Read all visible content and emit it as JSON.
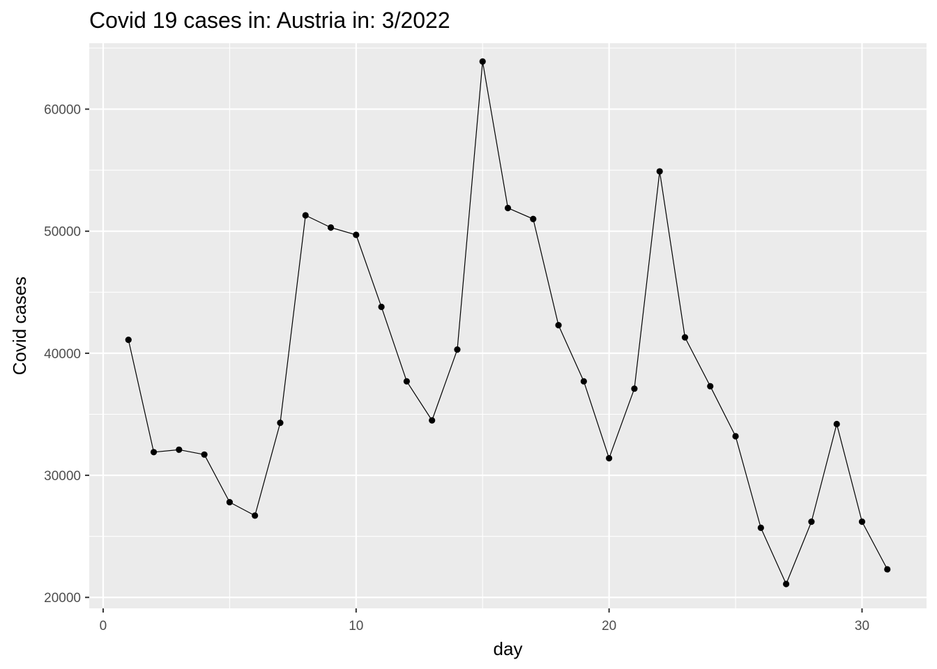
{
  "chart_data": {
    "type": "line",
    "title": "Covid 19 cases in: Austria in: 3/2022",
    "xlabel": "day",
    "ylabel": "Covid cases",
    "xlim": [
      -0.55,
      32.55
    ],
    "ylim": [
      19100,
      65400
    ],
    "x_ticks": [
      0,
      10,
      20,
      30
    ],
    "x_tick_labels": [
      "0",
      "10",
      "20",
      "30"
    ],
    "y_ticks": [
      20000,
      30000,
      40000,
      50000,
      60000
    ],
    "y_tick_labels": [
      "20000",
      "30000",
      "40000",
      "50000",
      "60000"
    ],
    "grid": true,
    "markers": true,
    "series": [
      {
        "x": [
          1,
          2,
          3,
          4,
          5,
          6,
          7,
          8,
          9,
          10,
          11,
          12,
          13,
          14,
          15,
          16,
          17,
          18,
          19,
          20,
          21,
          22,
          23,
          24,
          25,
          26,
          27,
          28,
          29,
          30,
          31
        ],
        "values": [
          41100,
          31900,
          32100,
          31700,
          27800,
          26700,
          34300,
          51300,
          50300,
          49700,
          43800,
          37700,
          34500,
          40300,
          63900,
          51900,
          51000,
          42300,
          37700,
          31400,
          37100,
          54900,
          41300,
          37300,
          33200,
          25700,
          21100,
          26200,
          34200,
          26200,
          22300
        ]
      }
    ],
    "colors": {
      "panel_background": "#ebebeb",
      "grid_major": "#ffffff",
      "line": "#000000",
      "point": "#000000",
      "tick_label": "#4d4d4d"
    }
  }
}
